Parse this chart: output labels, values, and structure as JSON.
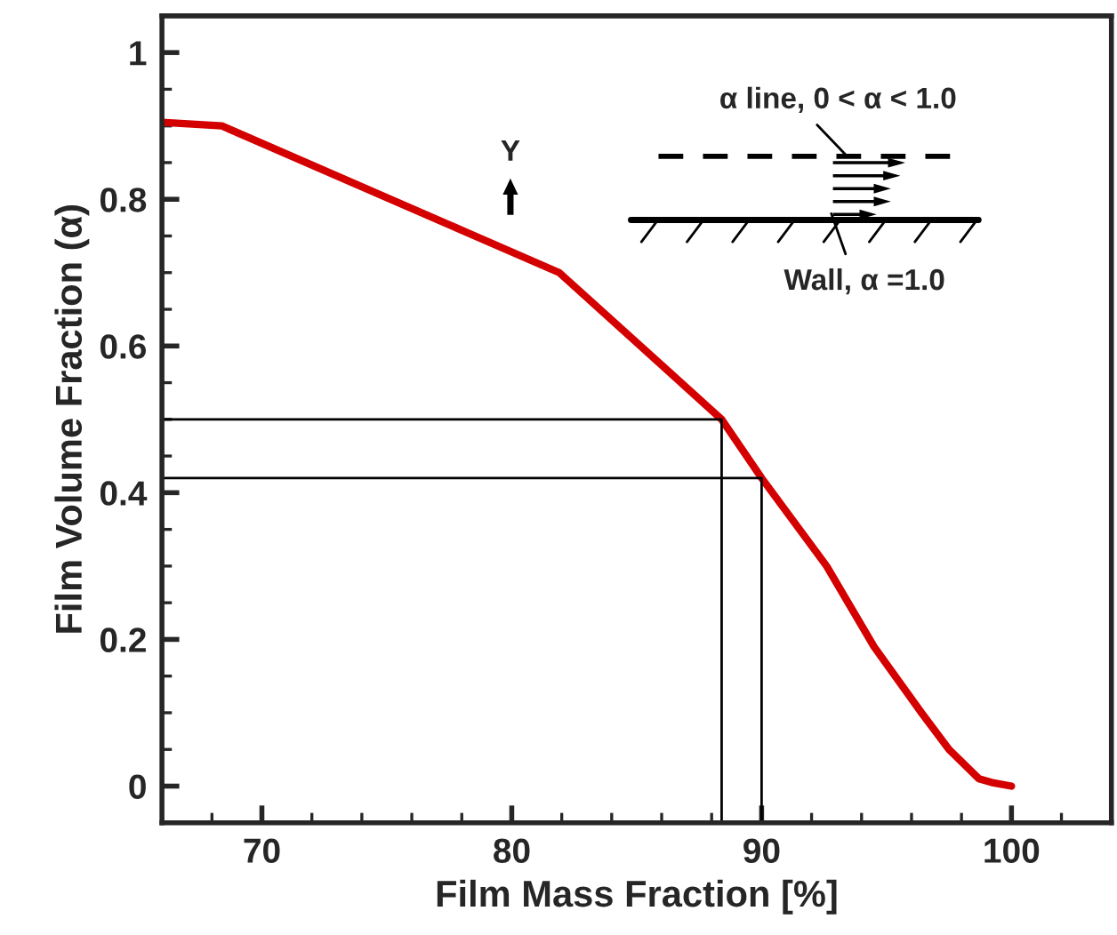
{
  "chart_data": {
    "type": "line",
    "xlabel": "Film Mass Fraction [%]",
    "ylabel": "Film Volume Fraction (α)",
    "series": [
      {
        "color": "#d40000",
        "x": [
          66,
          68.4,
          81.9,
          88.4,
          90,
          92.6,
          94.5,
          96.4,
          97.5,
          98.7,
          99.2,
          100
        ],
        "values": [
          0.905,
          0.9,
          0.7,
          0.5,
          0.42,
          0.3,
          0.19,
          0.1,
          0.05,
          0.01,
          0.005,
          0
        ]
      },
      {
        "color": "#000000",
        "x": [
          66,
          88.4,
          88.4
        ],
        "values": [
          0.5,
          0.5,
          -0.05
        ]
      },
      {
        "color": "#000000",
        "x": [
          66,
          90,
          90
        ],
        "values": [
          0.42,
          0.42,
          -0.05
        ]
      }
    ],
    "xlim": [
      66,
      104
    ],
    "ylim": [
      -0.05,
      1.05
    ],
    "xticks": [
      {
        "value": 68,
        "label": null
      },
      70,
      {
        "value": 72,
        "label": null
      },
      {
        "value": 74,
        "label": null
      },
      {
        "value": 76,
        "label": null
      },
      {
        "value": 78,
        "label": null
      },
      80,
      {
        "value": 82,
        "label": null
      },
      {
        "value": 84,
        "label": null
      },
      {
        "value": 86,
        "label": null
      },
      {
        "value": 88,
        "label": null
      },
      90,
      {
        "value": 92,
        "label": null
      },
      {
        "value": 94,
        "label": null
      },
      {
        "value": 96,
        "label": null
      },
      {
        "value": 98,
        "label": null
      },
      100,
      {
        "value": 102,
        "label": null
      }
    ],
    "yticks": [
      0,
      {
        "value": 0.05,
        "label": null
      },
      {
        "value": 0.1,
        "label": null
      },
      {
        "value": 0.15,
        "label": null
      },
      0.2,
      {
        "value": 0.25,
        "label": null
      },
      {
        "value": 0.3,
        "label": null
      },
      {
        "value": 0.35,
        "label": null
      },
      0.4,
      {
        "value": 0.45,
        "label": null
      },
      {
        "value": 0.5,
        "label": null
      },
      {
        "value": 0.55,
        "label": null
      },
      0.6,
      {
        "value": 0.65,
        "label": null
      },
      {
        "value": 0.7,
        "label": null
      },
      {
        "value": 0.75,
        "label": null
      },
      0.8,
      {
        "value": 0.85,
        "label": null
      },
      {
        "value": 0.9,
        "label": null
      },
      {
        "value": 0.95,
        "label": null
      },
      1
    ],
    "annotations": [
      "α line, 0 < α < 1.0",
      "Y",
      "Wall, α =1.0"
    ],
    "grid": false,
    "legend": false,
    "marker": "none",
    "line_style": "solid"
  }
}
